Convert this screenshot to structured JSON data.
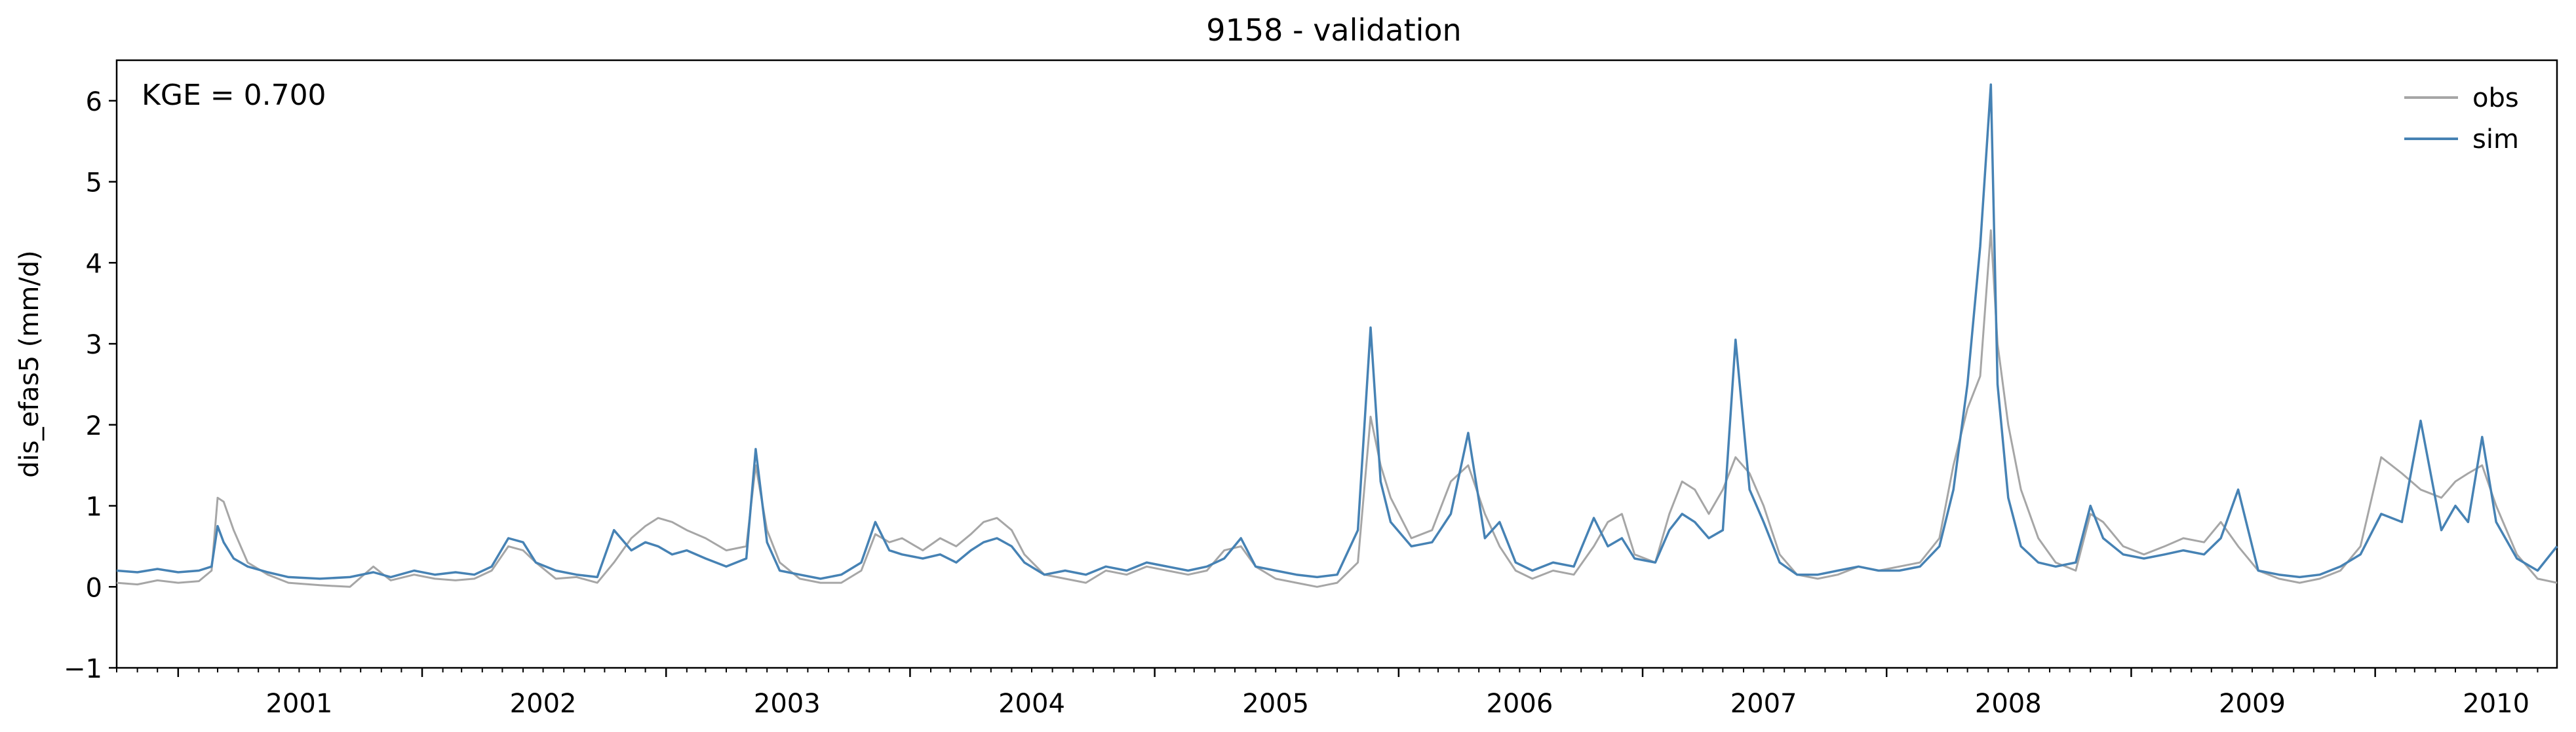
{
  "chart_data": {
    "type": "line",
    "title": "9158 - validation",
    "ylabel": "dis_efas5 (mm/d)",
    "xlabel": "",
    "ylim": [
      -1,
      6.5
    ],
    "xlim": [
      "2000-10-01",
      "2010-09-30"
    ],
    "yticks": [
      -1,
      0,
      1,
      2,
      3,
      4,
      5,
      6
    ],
    "xticks": [
      "2001",
      "2002",
      "2003",
      "2004",
      "2005",
      "2006",
      "2007",
      "2008",
      "2009",
      "2010"
    ],
    "annotation": "KGE = 0.700",
    "grid": false,
    "legend_position": "top-right",
    "series": [
      {
        "name": "obs",
        "color": "#a6a6a6",
        "points": [
          [
            "2000-10-01",
            0.05
          ],
          [
            "2000-11-01",
            0.03
          ],
          [
            "2000-12-01",
            0.08
          ],
          [
            "2001-01-01",
            0.05
          ],
          [
            "2001-02-01",
            0.07
          ],
          [
            "2001-02-20",
            0.2
          ],
          [
            "2001-03-01",
            1.1
          ],
          [
            "2001-03-10",
            1.05
          ],
          [
            "2001-03-25",
            0.7
          ],
          [
            "2001-04-15",
            0.3
          ],
          [
            "2001-05-15",
            0.15
          ],
          [
            "2001-06-15",
            0.05
          ],
          [
            "2001-08-01",
            0.02
          ],
          [
            "2001-09-15",
            0.0
          ],
          [
            "2001-10-20",
            0.25
          ],
          [
            "2001-11-15",
            0.08
          ],
          [
            "2001-12-20",
            0.15
          ],
          [
            "2002-01-20",
            0.1
          ],
          [
            "2002-02-20",
            0.08
          ],
          [
            "2002-03-20",
            0.1
          ],
          [
            "2002-04-15",
            0.2
          ],
          [
            "2002-05-10",
            0.5
          ],
          [
            "2002-06-01",
            0.45
          ],
          [
            "2002-06-20",
            0.3
          ],
          [
            "2002-07-20",
            0.1
          ],
          [
            "2002-08-20",
            0.12
          ],
          [
            "2002-09-20",
            0.05
          ],
          [
            "2002-10-15",
            0.3
          ],
          [
            "2002-11-10",
            0.6
          ],
          [
            "2002-12-01",
            0.75
          ],
          [
            "2002-12-20",
            0.85
          ],
          [
            "2003-01-10",
            0.8
          ],
          [
            "2003-02-01",
            0.7
          ],
          [
            "2003-03-01",
            0.6
          ],
          [
            "2003-04-01",
            0.45
          ],
          [
            "2003-05-01",
            0.5
          ],
          [
            "2003-05-15",
            1.5
          ],
          [
            "2003-06-01",
            0.7
          ],
          [
            "2003-06-20",
            0.3
          ],
          [
            "2003-07-20",
            0.1
          ],
          [
            "2003-08-20",
            0.05
          ],
          [
            "2003-09-20",
            0.05
          ],
          [
            "2003-10-20",
            0.2
          ],
          [
            "2003-11-10",
            0.65
          ],
          [
            "2003-12-01",
            0.55
          ],
          [
            "2003-12-20",
            0.6
          ],
          [
            "2004-01-20",
            0.45
          ],
          [
            "2004-02-15",
            0.6
          ],
          [
            "2004-03-10",
            0.5
          ],
          [
            "2004-04-01",
            0.65
          ],
          [
            "2004-04-20",
            0.8
          ],
          [
            "2004-05-10",
            0.85
          ],
          [
            "2004-06-01",
            0.7
          ],
          [
            "2004-06-20",
            0.4
          ],
          [
            "2004-07-20",
            0.15
          ],
          [
            "2004-08-20",
            0.1
          ],
          [
            "2004-09-20",
            0.05
          ],
          [
            "2004-10-20",
            0.2
          ],
          [
            "2004-11-20",
            0.15
          ],
          [
            "2004-12-20",
            0.25
          ],
          [
            "2005-01-20",
            0.2
          ],
          [
            "2005-02-20",
            0.15
          ],
          [
            "2005-03-20",
            0.2
          ],
          [
            "2005-04-15",
            0.45
          ],
          [
            "2005-05-10",
            0.5
          ],
          [
            "2005-06-01",
            0.25
          ],
          [
            "2005-07-01",
            0.1
          ],
          [
            "2005-08-01",
            0.05
          ],
          [
            "2005-09-01",
            0.0
          ],
          [
            "2005-10-01",
            0.05
          ],
          [
            "2005-11-01",
            0.3
          ],
          [
            "2005-11-20",
            2.1
          ],
          [
            "2005-12-05",
            1.5
          ],
          [
            "2005-12-20",
            1.1
          ],
          [
            "2006-01-20",
            0.6
          ],
          [
            "2006-02-20",
            0.7
          ],
          [
            "2006-03-20",
            1.3
          ],
          [
            "2006-04-15",
            1.5
          ],
          [
            "2006-05-10",
            0.9
          ],
          [
            "2006-06-01",
            0.5
          ],
          [
            "2006-06-25",
            0.2
          ],
          [
            "2006-07-20",
            0.1
          ],
          [
            "2006-08-20",
            0.2
          ],
          [
            "2006-09-20",
            0.15
          ],
          [
            "2006-10-20",
            0.5
          ],
          [
            "2006-11-10",
            0.8
          ],
          [
            "2006-12-01",
            0.9
          ],
          [
            "2006-12-20",
            0.4
          ],
          [
            "2007-01-20",
            0.3
          ],
          [
            "2007-02-10",
            0.9
          ],
          [
            "2007-03-01",
            1.3
          ],
          [
            "2007-03-20",
            1.2
          ],
          [
            "2007-04-10",
            0.9
          ],
          [
            "2007-05-01",
            1.2
          ],
          [
            "2007-05-20",
            1.6
          ],
          [
            "2007-06-10",
            1.4
          ],
          [
            "2007-07-01",
            1.0
          ],
          [
            "2007-07-25",
            0.4
          ],
          [
            "2007-08-20",
            0.15
          ],
          [
            "2007-09-20",
            0.1
          ],
          [
            "2007-10-20",
            0.15
          ],
          [
            "2007-11-20",
            0.25
          ],
          [
            "2007-12-20",
            0.2
          ],
          [
            "2008-01-20",
            0.25
          ],
          [
            "2008-02-20",
            0.3
          ],
          [
            "2008-03-20",
            0.6
          ],
          [
            "2008-04-10",
            1.5
          ],
          [
            "2008-05-01",
            2.2
          ],
          [
            "2008-05-20",
            2.6
          ],
          [
            "2008-06-05",
            4.4
          ],
          [
            "2008-06-15",
            3.0
          ],
          [
            "2008-07-01",
            2.0
          ],
          [
            "2008-07-20",
            1.2
          ],
          [
            "2008-08-15",
            0.6
          ],
          [
            "2008-09-10",
            0.3
          ],
          [
            "2008-10-10",
            0.2
          ],
          [
            "2008-11-01",
            0.9
          ],
          [
            "2008-11-20",
            0.8
          ],
          [
            "2008-12-20",
            0.5
          ],
          [
            "2009-01-20",
            0.4
          ],
          [
            "2009-02-20",
            0.5
          ],
          [
            "2009-03-20",
            0.6
          ],
          [
            "2009-04-20",
            0.55
          ],
          [
            "2009-05-15",
            0.8
          ],
          [
            "2009-06-10",
            0.5
          ],
          [
            "2009-07-10",
            0.2
          ],
          [
            "2009-08-10",
            0.1
          ],
          [
            "2009-09-10",
            0.05
          ],
          [
            "2009-10-10",
            0.1
          ],
          [
            "2009-11-10",
            0.2
          ],
          [
            "2009-12-10",
            0.5
          ],
          [
            "2010-01-10",
            1.6
          ],
          [
            "2010-02-10",
            1.4
          ],
          [
            "2010-03-10",
            1.2
          ],
          [
            "2010-04-10",
            1.1
          ],
          [
            "2010-05-01",
            1.3
          ],
          [
            "2010-05-20",
            1.4
          ],
          [
            "2010-06-10",
            1.5
          ],
          [
            "2010-07-01",
            1.0
          ],
          [
            "2010-08-01",
            0.4
          ],
          [
            "2010-09-01",
            0.1
          ],
          [
            "2010-09-30",
            0.05
          ]
        ]
      },
      {
        "name": "sim",
        "color": "#4682b4",
        "points": [
          [
            "2000-10-01",
            0.2
          ],
          [
            "2000-11-01",
            0.18
          ],
          [
            "2000-12-01",
            0.22
          ],
          [
            "2001-01-01",
            0.18
          ],
          [
            "2001-02-01",
            0.2
          ],
          [
            "2001-02-20",
            0.25
          ],
          [
            "2001-03-01",
            0.75
          ],
          [
            "2001-03-10",
            0.55
          ],
          [
            "2001-03-25",
            0.35
          ],
          [
            "2001-04-15",
            0.25
          ],
          [
            "2001-05-15",
            0.18
          ],
          [
            "2001-06-15",
            0.12
          ],
          [
            "2001-08-01",
            0.1
          ],
          [
            "2001-09-15",
            0.12
          ],
          [
            "2001-10-20",
            0.18
          ],
          [
            "2001-11-15",
            0.12
          ],
          [
            "2001-12-20",
            0.2
          ],
          [
            "2002-01-20",
            0.15
          ],
          [
            "2002-02-20",
            0.18
          ],
          [
            "2002-03-20",
            0.15
          ],
          [
            "2002-04-15",
            0.25
          ],
          [
            "2002-05-10",
            0.6
          ],
          [
            "2002-06-01",
            0.55
          ],
          [
            "2002-06-20",
            0.3
          ],
          [
            "2002-07-20",
            0.2
          ],
          [
            "2002-08-20",
            0.15
          ],
          [
            "2002-09-20",
            0.12
          ],
          [
            "2002-10-15",
            0.7
          ],
          [
            "2002-11-10",
            0.45
          ],
          [
            "2002-12-01",
            0.55
          ],
          [
            "2002-12-20",
            0.5
          ],
          [
            "2003-01-10",
            0.4
          ],
          [
            "2003-02-01",
            0.45
          ],
          [
            "2003-03-01",
            0.35
          ],
          [
            "2003-04-01",
            0.25
          ],
          [
            "2003-05-01",
            0.35
          ],
          [
            "2003-05-15",
            1.7
          ],
          [
            "2003-06-01",
            0.55
          ],
          [
            "2003-06-20",
            0.2
          ],
          [
            "2003-07-20",
            0.15
          ],
          [
            "2003-08-20",
            0.1
          ],
          [
            "2003-09-20",
            0.15
          ],
          [
            "2003-10-20",
            0.3
          ],
          [
            "2003-11-10",
            0.8
          ],
          [
            "2003-12-01",
            0.45
          ],
          [
            "2003-12-20",
            0.4
          ],
          [
            "2004-01-20",
            0.35
          ],
          [
            "2004-02-15",
            0.4
          ],
          [
            "2004-03-10",
            0.3
          ],
          [
            "2004-04-01",
            0.45
          ],
          [
            "2004-04-20",
            0.55
          ],
          [
            "2004-05-10",
            0.6
          ],
          [
            "2004-06-01",
            0.5
          ],
          [
            "2004-06-20",
            0.3
          ],
          [
            "2004-07-20",
            0.15
          ],
          [
            "2004-08-20",
            0.2
          ],
          [
            "2004-09-20",
            0.15
          ],
          [
            "2004-10-20",
            0.25
          ],
          [
            "2004-11-20",
            0.2
          ],
          [
            "2004-12-20",
            0.3
          ],
          [
            "2005-01-20",
            0.25
          ],
          [
            "2005-02-20",
            0.2
          ],
          [
            "2005-03-20",
            0.25
          ],
          [
            "2005-04-15",
            0.35
          ],
          [
            "2005-05-10",
            0.6
          ],
          [
            "2005-06-01",
            0.25
          ],
          [
            "2005-07-01",
            0.2
          ],
          [
            "2005-08-01",
            0.15
          ],
          [
            "2005-09-01",
            0.12
          ],
          [
            "2005-10-01",
            0.15
          ],
          [
            "2005-11-01",
            0.7
          ],
          [
            "2005-11-20",
            3.2
          ],
          [
            "2005-12-05",
            1.3
          ],
          [
            "2005-12-20",
            0.8
          ],
          [
            "2006-01-20",
            0.5
          ],
          [
            "2006-02-20",
            0.55
          ],
          [
            "2006-03-20",
            0.9
          ],
          [
            "2006-04-15",
            1.9
          ],
          [
            "2006-05-10",
            0.6
          ],
          [
            "2006-06-01",
            0.8
          ],
          [
            "2006-06-25",
            0.3
          ],
          [
            "2006-07-20",
            0.2
          ],
          [
            "2006-08-20",
            0.3
          ],
          [
            "2006-09-20",
            0.25
          ],
          [
            "2006-10-20",
            0.85
          ],
          [
            "2006-11-10",
            0.5
          ],
          [
            "2006-12-01",
            0.6
          ],
          [
            "2006-12-20",
            0.35
          ],
          [
            "2007-01-20",
            0.3
          ],
          [
            "2007-02-10",
            0.7
          ],
          [
            "2007-03-01",
            0.9
          ],
          [
            "2007-03-20",
            0.8
          ],
          [
            "2007-04-10",
            0.6
          ],
          [
            "2007-05-01",
            0.7
          ],
          [
            "2007-05-20",
            3.05
          ],
          [
            "2007-06-10",
            1.2
          ],
          [
            "2007-07-01",
            0.8
          ],
          [
            "2007-07-25",
            0.3
          ],
          [
            "2007-08-20",
            0.15
          ],
          [
            "2007-09-20",
            0.15
          ],
          [
            "2007-10-20",
            0.2
          ],
          [
            "2007-11-20",
            0.25
          ],
          [
            "2007-12-20",
            0.2
          ],
          [
            "2008-01-20",
            0.2
          ],
          [
            "2008-02-20",
            0.25
          ],
          [
            "2008-03-20",
            0.5
          ],
          [
            "2008-04-10",
            1.2
          ],
          [
            "2008-05-01",
            2.5
          ],
          [
            "2008-05-20",
            4.2
          ],
          [
            "2008-06-05",
            6.2
          ],
          [
            "2008-06-15",
            2.5
          ],
          [
            "2008-07-01",
            1.1
          ],
          [
            "2008-07-20",
            0.5
          ],
          [
            "2008-08-15",
            0.3
          ],
          [
            "2008-09-10",
            0.25
          ],
          [
            "2008-10-10",
            0.3
          ],
          [
            "2008-11-01",
            1.0
          ],
          [
            "2008-11-20",
            0.6
          ],
          [
            "2008-12-20",
            0.4
          ],
          [
            "2009-01-20",
            0.35
          ],
          [
            "2009-02-20",
            0.4
          ],
          [
            "2009-03-20",
            0.45
          ],
          [
            "2009-04-20",
            0.4
          ],
          [
            "2009-05-15",
            0.6
          ],
          [
            "2009-06-10",
            1.2
          ],
          [
            "2009-07-10",
            0.2
          ],
          [
            "2009-08-10",
            0.15
          ],
          [
            "2009-09-10",
            0.12
          ],
          [
            "2009-10-10",
            0.15
          ],
          [
            "2009-11-10",
            0.25
          ],
          [
            "2009-12-10",
            0.4
          ],
          [
            "2010-01-10",
            0.9
          ],
          [
            "2010-02-10",
            0.8
          ],
          [
            "2010-03-10",
            2.05
          ],
          [
            "2010-04-10",
            0.7
          ],
          [
            "2010-05-01",
            1.0
          ],
          [
            "2010-05-20",
            0.8
          ],
          [
            "2010-06-10",
            1.85
          ],
          [
            "2010-07-01",
            0.8
          ],
          [
            "2010-08-01",
            0.35
          ],
          [
            "2010-09-01",
            0.2
          ],
          [
            "2010-09-30",
            0.5
          ]
        ]
      }
    ]
  }
}
